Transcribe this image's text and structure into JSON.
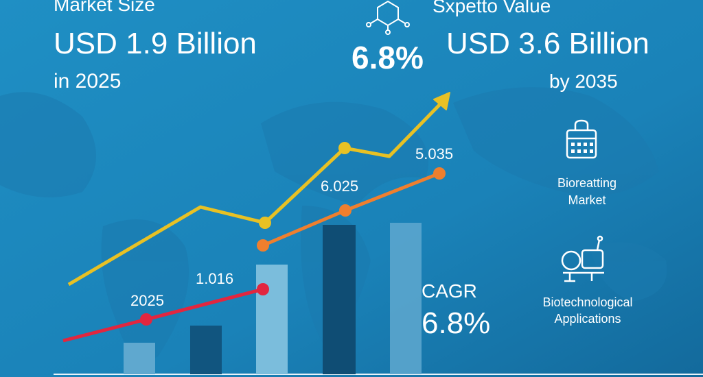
{
  "header": {
    "left": {
      "label": "Market Size",
      "value": "USD 1.9 Billion",
      "year": "in 2025"
    },
    "right": {
      "label": "Sxpetto Value",
      "cagr": "6.8%",
      "value": "USD 3.6 Billion",
      "year": "by 2035"
    }
  },
  "annotations": [
    "5.035",
    "6.025",
    "1.016",
    "2025"
  ],
  "cagr": {
    "label": "CAGR",
    "value": "6.8%"
  },
  "sidebar": [
    {
      "lines": [
        "Bioreatting",
        "Market"
      ]
    },
    {
      "lines": [
        "Biotechnological",
        "Applications"
      ]
    }
  ]
}
